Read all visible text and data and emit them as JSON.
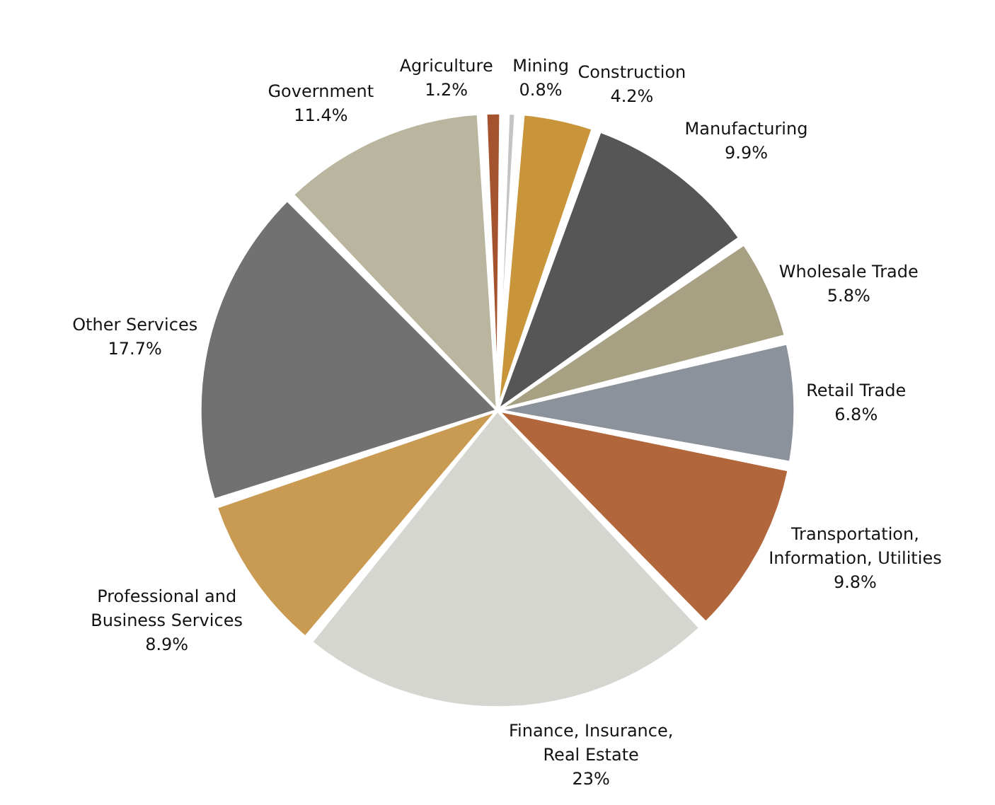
{
  "chart_data": {
    "type": "pie",
    "categories": [
      "Agriculture",
      "Mining",
      "Construction",
      "Manufacturing",
      "Wholesale Trade",
      "Retail Trade",
      "Transportation, Information, Utilities",
      "Finance, Insurance, Real Estate",
      "Professional and Business Services",
      "Other Services",
      "Government"
    ],
    "values": [
      1.2,
      0.8,
      4.2,
      9.9,
      5.8,
      6.8,
      9.8,
      23,
      8.9,
      17.7,
      11.4
    ],
    "colors": [
      "#a4532e",
      "#c4c4c4",
      "#c8953a",
      "#565656",
      "#a8a083",
      "#8b929c",
      "#b2663b",
      "#d6d6d1",
      "#c99a52",
      "#717171",
      "#bab59e"
    ],
    "value_labels": [
      "1.2%",
      "0.8%",
      "4.2%",
      "9.9%",
      "5.8%",
      "6.8%",
      "9.8%",
      "23%",
      "8.9%",
      "17.7%",
      "11.4%"
    ]
  }
}
